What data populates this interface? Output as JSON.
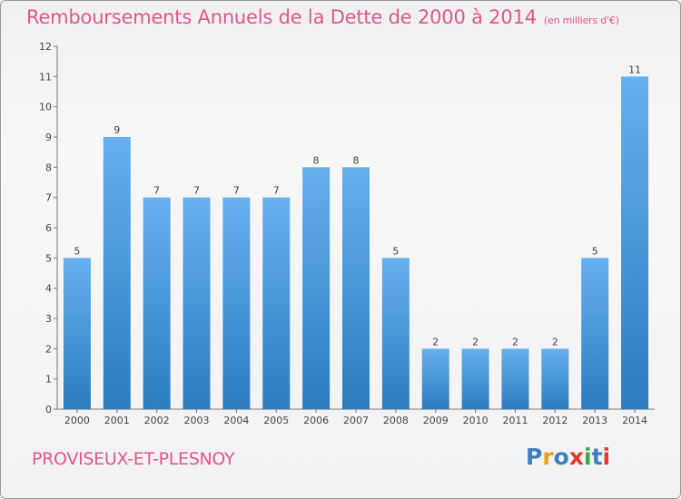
{
  "header": {
    "title": "Remboursements Annuels de la Dette de 2000 à 2014",
    "subtitle": "(en milliers d'€)"
  },
  "footer": {
    "commune": "PROVISEUX-ET-PLESNOY",
    "logo_text": "Proxiti",
    "logo_colors": [
      "#3a7fc1",
      "#e8a21c",
      "#3a7fc1",
      "#e23a2c",
      "#3aa84a",
      "#3a7fc1",
      "#e23a2c"
    ]
  },
  "colors": {
    "title": "#e0568f",
    "bar_top": "#66b0ee",
    "bar_bottom": "#2c7cbf"
  },
  "chart_data": {
    "type": "bar",
    "title": "Remboursements Annuels de la Dette de 2000 à 2014",
    "subtitle": "(en milliers d'€)",
    "xlabel": "",
    "ylabel": "",
    "categories": [
      "2000",
      "2001",
      "2002",
      "2003",
      "2004",
      "2005",
      "2006",
      "2007",
      "2008",
      "2009",
      "2010",
      "2011",
      "2012",
      "2013",
      "2014"
    ],
    "values": [
      5,
      9,
      7,
      7,
      7,
      7,
      8,
      8,
      5,
      2,
      2,
      2,
      2,
      5,
      11
    ],
    "value_labels": [
      "5",
      "9",
      "7",
      "7",
      "7",
      "7",
      "8",
      "8",
      "5",
      "2",
      "2",
      "2",
      "2",
      "5",
      "11"
    ],
    "ylim": [
      0,
      12
    ],
    "yticks": [
      "0",
      "1",
      "2",
      "3",
      "4",
      "5",
      "6",
      "7",
      "8",
      "9",
      "10",
      "11",
      "12"
    ],
    "grid": false,
    "legend": "none"
  }
}
